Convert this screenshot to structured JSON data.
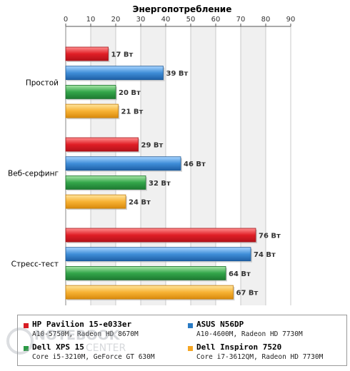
{
  "chart_data": {
    "type": "bar",
    "orientation": "horizontal",
    "title": "Энергопотребление",
    "xlim": [
      0,
      90
    ],
    "xticks": [
      "0",
      "10",
      "20",
      "30",
      "40",
      "50",
      "60",
      "70",
      "80",
      "90"
    ],
    "grid": true,
    "categories": [
      "Простой",
      "Веб-серфинг",
      "Стресс-тест"
    ],
    "series": [
      {
        "name": "HP Pavilion 15-e033er",
        "values": [
          17,
          29,
          76
        ],
        "labels": [
          "17 Вт",
          "29 Вт",
          "76 Вт"
        ],
        "color": "#d81c24"
      },
      {
        "name": "ASUS N56DP",
        "values": [
          39,
          46,
          74
        ],
        "labels": [
          "39 Вт",
          "46 Вт",
          "74 Вт"
        ],
        "color": "#2a7bc4"
      },
      {
        "name": "Dell XPS 15",
        "values": [
          20,
          32,
          64
        ],
        "labels": [
          "20 Вт",
          "32 Вт",
          "64 Вт"
        ],
        "color": "#2c9a45"
      },
      {
        "name": "Dell Inspiron 7520",
        "values": [
          21,
          24,
          67
        ],
        "labels": [
          "21 Вт",
          "24 Вт",
          "67 Вт"
        ],
        "color": "#f5a623"
      }
    ],
    "legend_placement": "bottom"
  },
  "legend": [
    {
      "name": "HP Pavilion 15-e033er",
      "sub": "A10-5750M, Radeon HD 8670M",
      "color": "#d81c24"
    },
    {
      "name": "ASUS N56DP",
      "sub": "A10-4600M, Radeon HD 7730M",
      "color": "#2a7bc4"
    },
    {
      "name": "Dell XPS 15",
      "sub": "Core i5-3210M, GeForce GT 630M",
      "color": "#2c9a45"
    },
    {
      "name": "Dell Inspiron 7520",
      "sub": "Core i7-3612QM, Radeon HD 7730M",
      "color": "#f5a623"
    }
  ],
  "watermark": {
    "line1": "NOTEBOOK",
    "line2": "CENTER"
  }
}
